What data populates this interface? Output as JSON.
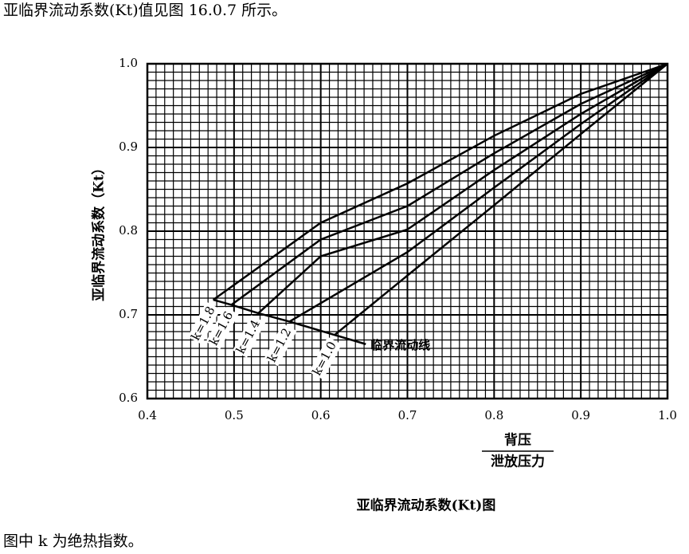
{
  "intro_text": "亚临界流动系数(Kt)值见图 16.0.7 所示。",
  "chart_data": {
    "type": "line",
    "ylabel": "亚临界流动系数（Kt）",
    "xlabel_numerator": "背压",
    "xlabel_denominator": "泄放压力",
    "caption": "亚临界流动系数(Kt)图",
    "xlim": [
      0.4,
      1.0
    ],
    "ylim": [
      0.6,
      1.0
    ],
    "xticks": [
      0.4,
      0.5,
      0.6,
      0.7,
      0.8,
      0.9,
      {
        "value": 1.0,
        "label": "1.0"
      }
    ],
    "yticks": [
      0.6,
      0.7,
      0.8,
      0.9,
      {
        "value": 1.0,
        "label": "1.0"
      }
    ],
    "grid": true,
    "minor_grid_step": 0.01,
    "series": [
      {
        "name": "k=1.8",
        "color": "#000000",
        "x": [
          0.476,
          0.6,
          0.7,
          0.8,
          0.9,
          1.0
        ],
        "values": [
          0.718,
          0.81,
          0.857,
          0.914,
          0.964,
          1.0
        ]
      },
      {
        "name": "k=1.6",
        "color": "#000000",
        "x": [
          0.497,
          0.6,
          0.7,
          0.8,
          0.9,
          1.0
        ],
        "values": [
          0.712,
          0.79,
          0.83,
          0.893,
          0.952,
          1.0
        ]
      },
      {
        "name": "k=1.4",
        "color": "#000000",
        "x": [
          0.528,
          0.6,
          0.7,
          0.8,
          0.9,
          1.0
        ],
        "values": [
          0.702,
          0.77,
          0.802,
          0.873,
          0.94,
          1.0
        ]
      },
      {
        "name": "k=1.2",
        "color": "#000000",
        "x": [
          0.564,
          0.7,
          0.8,
          0.9,
          1.0
        ],
        "values": [
          0.692,
          0.775,
          0.852,
          0.928,
          1.0
        ]
      },
      {
        "name": "k=1.0",
        "color": "#000000",
        "x": [
          0.616,
          0.7,
          0.8,
          0.9,
          1.0
        ],
        "values": [
          0.676,
          0.747,
          0.831,
          0.916,
          1.0
        ]
      },
      {
        "name": "临界流动线",
        "color": "#000000",
        "x": [
          0.476,
          0.497,
          0.528,
          0.564,
          0.616,
          0.652
        ],
        "values": [
          0.718,
          0.712,
          0.702,
          0.692,
          0.676,
          0.665
        ]
      }
    ]
  },
  "note": "图中 k 为绝热指数。"
}
